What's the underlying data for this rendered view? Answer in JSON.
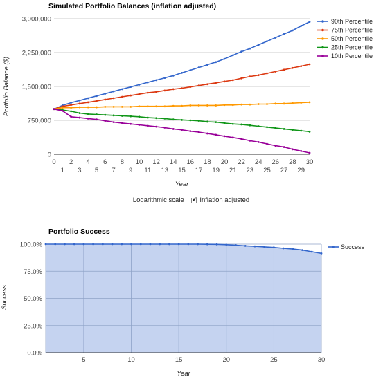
{
  "chart_data": [
    {
      "type": "line",
      "title": "Simulated Portfolio Balances (inflation adjusted)",
      "xlabel": "Year",
      "ylabel": "Portfolio Balance ($)",
      "x": [
        0,
        1,
        2,
        3,
        4,
        5,
        6,
        7,
        8,
        9,
        10,
        11,
        12,
        13,
        14,
        15,
        16,
        17,
        18,
        19,
        20,
        21,
        22,
        23,
        24,
        25,
        26,
        27,
        28,
        29,
        30
      ],
      "ylim": [
        0,
        3000000
      ],
      "yticks": [
        "0",
        "750,000",
        "1,500,000",
        "2,250,000",
        "3,000,000"
      ],
      "xticks_top": [
        "0",
        "2",
        "4",
        "6",
        "8",
        "10",
        "12",
        "14",
        "16",
        "18",
        "20",
        "22",
        "24",
        "26",
        "28",
        "30"
      ],
      "xticks_bottom": [
        "1",
        "3",
        "5",
        "7",
        "9",
        "11",
        "13",
        "15",
        "17",
        "19",
        "21",
        "23",
        "25",
        "27",
        "29"
      ],
      "legend_position": "right",
      "grid": true,
      "series": [
        {
          "name": "90th Percentile",
          "color": "#3366cc",
          "values": [
            1000000,
            1080000,
            1140000,
            1190000,
            1240000,
            1290000,
            1340000,
            1390000,
            1440000,
            1490000,
            1540000,
            1590000,
            1640000,
            1690000,
            1740000,
            1800000,
            1860000,
            1920000,
            1980000,
            2040000,
            2110000,
            2190000,
            2270000,
            2340000,
            2420000,
            2500000,
            2580000,
            2660000,
            2740000,
            2840000,
            2930000
          ]
        },
        {
          "name": "75th Percentile",
          "color": "#dc3912",
          "values": [
            1000000,
            1060000,
            1090000,
            1120000,
            1150000,
            1180000,
            1210000,
            1240000,
            1270000,
            1300000,
            1330000,
            1360000,
            1380000,
            1410000,
            1440000,
            1460000,
            1490000,
            1520000,
            1550000,
            1580000,
            1610000,
            1640000,
            1680000,
            1720000,
            1750000,
            1790000,
            1830000,
            1870000,
            1910000,
            1950000,
            1990000
          ]
        },
        {
          "name": "50th Percentile",
          "color": "#ff9900",
          "values": [
            1000000,
            1030000,
            1030000,
            1040000,
            1040000,
            1040000,
            1050000,
            1050000,
            1050000,
            1050000,
            1060000,
            1060000,
            1060000,
            1060000,
            1070000,
            1070000,
            1080000,
            1080000,
            1080000,
            1080000,
            1090000,
            1090000,
            1100000,
            1100000,
            1110000,
            1110000,
            1120000,
            1120000,
            1130000,
            1140000,
            1150000
          ]
        },
        {
          "name": "25th Percentile",
          "color": "#109618",
          "values": [
            1000000,
            980000,
            950000,
            910000,
            890000,
            880000,
            870000,
            860000,
            850000,
            840000,
            830000,
            810000,
            800000,
            790000,
            770000,
            760000,
            750000,
            740000,
            720000,
            710000,
            690000,
            670000,
            660000,
            640000,
            620000,
            600000,
            580000,
            560000,
            540000,
            520000,
            500000
          ]
        },
        {
          "name": "10th Percentile",
          "color": "#990099",
          "values": [
            1000000,
            960000,
            830000,
            810000,
            790000,
            770000,
            740000,
            710000,
            690000,
            670000,
            650000,
            630000,
            610000,
            590000,
            560000,
            540000,
            510000,
            490000,
            460000,
            430000,
            400000,
            370000,
            340000,
            300000,
            270000,
            230000,
            190000,
            160000,
            110000,
            70000,
            30000
          ]
        }
      ]
    },
    {
      "type": "area",
      "title": "Portfolio Success",
      "xlabel": "Year",
      "ylabel": "Success",
      "x": [
        1,
        2,
        3,
        4,
        5,
        6,
        7,
        8,
        9,
        10,
        11,
        12,
        13,
        14,
        15,
        16,
        17,
        18,
        19,
        20,
        21,
        22,
        23,
        24,
        25,
        26,
        27,
        28,
        29,
        30
      ],
      "xlim": [
        1,
        30
      ],
      "ylim": [
        0,
        100
      ],
      "yticks": [
        "0.0%",
        "25.0%",
        "50.0%",
        "75.0%",
        "100.0%"
      ],
      "xticks": [
        "5",
        "10",
        "15",
        "20",
        "25",
        "30"
      ],
      "legend_position": "right",
      "grid": true,
      "series": [
        {
          "name": "Success",
          "color": "#3366cc",
          "fill": "#c5d3f0",
          "values": [
            100,
            100,
            100,
            100,
            100,
            100,
            100,
            100,
            100,
            100,
            100,
            100,
            100,
            100,
            100,
            100,
            100,
            99.9,
            99.8,
            99.5,
            99,
            98.5,
            98,
            97.5,
            97,
            96.2,
            95.5,
            94.5,
            93,
            91.5
          ]
        }
      ]
    }
  ],
  "controls": {
    "log_scale_label": "Logarithmic scale",
    "log_scale_checked": false,
    "inflation_label": "Inflation adjusted",
    "inflation_checked": true
  }
}
